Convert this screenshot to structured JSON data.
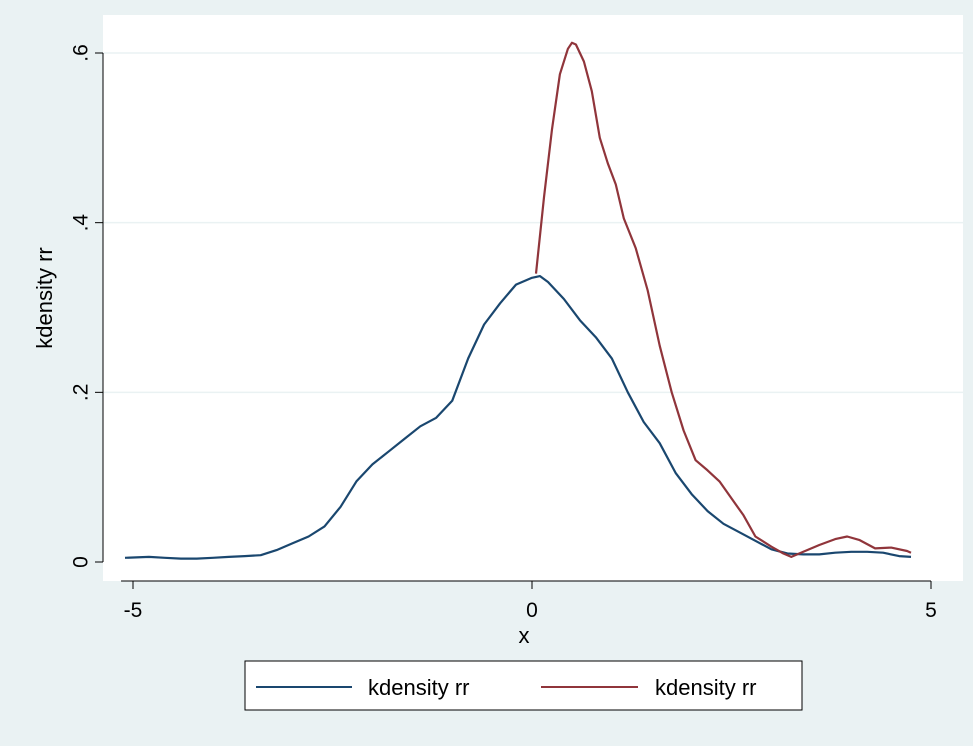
{
  "chart_data": {
    "type": "line",
    "title": "",
    "xlabel": "x",
    "ylabel": "kdensity rr",
    "xlim": [
      -5.15,
      4.95
    ],
    "ylim": [
      0,
      0.6
    ],
    "x_ticks": [
      -5,
      0,
      5
    ],
    "x_tick_labels": [
      "-5",
      "0",
      "5"
    ],
    "y_ticks": [
      0,
      0.2,
      0.4,
      0.6
    ],
    "y_tick_labels": [
      "0",
      ".2",
      ".4",
      ".6"
    ],
    "grid": "horizontal",
    "legend_position": "bottom",
    "series": [
      {
        "name": "kdensity rr",
        "color": "#1a476f",
        "points": [
          [
            -5.1,
            0.005
          ],
          [
            -4.8,
            0.006
          ],
          [
            -4.6,
            0.005
          ],
          [
            -4.4,
            0.004
          ],
          [
            -4.2,
            0.004
          ],
          [
            -4.0,
            0.005
          ],
          [
            -3.8,
            0.006
          ],
          [
            -3.6,
            0.007
          ],
          [
            -3.4,
            0.008
          ],
          [
            -3.2,
            0.014
          ],
          [
            -3.0,
            0.022
          ],
          [
            -2.8,
            0.03
          ],
          [
            -2.6,
            0.042
          ],
          [
            -2.4,
            0.065
          ],
          [
            -2.2,
            0.095
          ],
          [
            -2.0,
            0.115
          ],
          [
            -1.8,
            0.13
          ],
          [
            -1.6,
            0.145
          ],
          [
            -1.4,
            0.16
          ],
          [
            -1.2,
            0.17
          ],
          [
            -1.0,
            0.19
          ],
          [
            -0.8,
            0.24
          ],
          [
            -0.6,
            0.28
          ],
          [
            -0.4,
            0.305
          ],
          [
            -0.2,
            0.327
          ],
          [
            0.0,
            0.335
          ],
          [
            0.1,
            0.337
          ],
          [
            0.2,
            0.33
          ],
          [
            0.4,
            0.31
          ],
          [
            0.6,
            0.285
          ],
          [
            0.8,
            0.265
          ],
          [
            1.0,
            0.24
          ],
          [
            1.2,
            0.2
          ],
          [
            1.4,
            0.165
          ],
          [
            1.6,
            0.14
          ],
          [
            1.8,
            0.105
          ],
          [
            2.0,
            0.08
          ],
          [
            2.2,
            0.06
          ],
          [
            2.4,
            0.045
          ],
          [
            2.6,
            0.035
          ],
          [
            2.8,
            0.025
          ],
          [
            3.0,
            0.015
          ],
          [
            3.2,
            0.01
          ],
          [
            3.4,
            0.009
          ],
          [
            3.6,
            0.009
          ],
          [
            3.8,
            0.011
          ],
          [
            4.0,
            0.012
          ],
          [
            4.2,
            0.012
          ],
          [
            4.4,
            0.011
          ],
          [
            4.6,
            0.007
          ],
          [
            4.75,
            0.006
          ]
        ]
      },
      {
        "name": "kdensity rr",
        "color": "#90353b",
        "points": [
          [
            0.05,
            0.34
          ],
          [
            0.15,
            0.43
          ],
          [
            0.25,
            0.51
          ],
          [
            0.35,
            0.575
          ],
          [
            0.45,
            0.605
          ],
          [
            0.5,
            0.612
          ],
          [
            0.55,
            0.61
          ],
          [
            0.65,
            0.59
          ],
          [
            0.75,
            0.555
          ],
          [
            0.85,
            0.5
          ],
          [
            0.95,
            0.47
          ],
          [
            1.05,
            0.445
          ],
          [
            1.15,
            0.405
          ],
          [
            1.3,
            0.37
          ],
          [
            1.45,
            0.32
          ],
          [
            1.6,
            0.255
          ],
          [
            1.75,
            0.2
          ],
          [
            1.9,
            0.155
          ],
          [
            2.05,
            0.12
          ],
          [
            2.2,
            0.108
          ],
          [
            2.35,
            0.095
          ],
          [
            2.5,
            0.075
          ],
          [
            2.65,
            0.055
          ],
          [
            2.8,
            0.03
          ],
          [
            3.0,
            0.018
          ],
          [
            3.15,
            0.01
          ],
          [
            3.25,
            0.006
          ],
          [
            3.4,
            0.012
          ],
          [
            3.6,
            0.02
          ],
          [
            3.8,
            0.027
          ],
          [
            3.95,
            0.03
          ],
          [
            4.1,
            0.026
          ],
          [
            4.3,
            0.016
          ],
          [
            4.5,
            0.017
          ],
          [
            4.7,
            0.013
          ],
          [
            4.75,
            0.011
          ]
        ]
      }
    ]
  }
}
